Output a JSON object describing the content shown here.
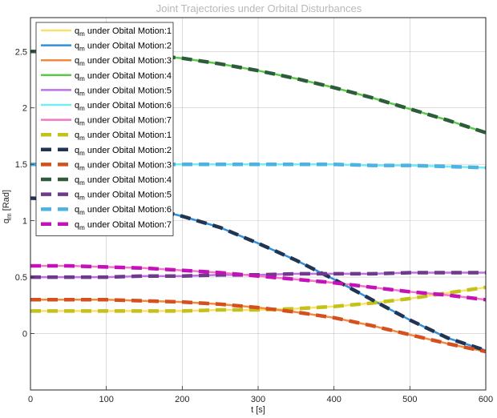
{
  "chart_data": {
    "type": "line",
    "title": "Joint Trajectories under Orbital Disturbances",
    "xlabel": "t [s]",
    "ylabel_main": "q",
    "ylabel_sub": "m",
    "ylabel_tail": " [Rad]",
    "xlim": [
      0,
      600
    ],
    "ylim": [
      -0.5,
      2.8
    ],
    "xticks": [
      0,
      100,
      200,
      300,
      400,
      500,
      600
    ],
    "yticks": [
      0,
      0.5,
      1,
      1.5,
      2,
      2.5
    ],
    "grid": true,
    "legend_position": "top-left",
    "legend_prefix": "q",
    "legend_sub": "m",
    "x": [
      0,
      50,
      100,
      150,
      200,
      250,
      300,
      350,
      400,
      450,
      500,
      550,
      600
    ],
    "series": [
      {
        "name": " under Obital Motion:1",
        "style": "solid",
        "color": "#fbe06c",
        "values": [
          0.2,
          0.2,
          0.2,
          0.2,
          0.2,
          0.21,
          0.21,
          0.22,
          0.24,
          0.27,
          0.31,
          0.36,
          0.41
        ]
      },
      {
        "name": " under Obital Motion:2",
        "style": "solid",
        "color": "#2f8fd8",
        "values": [
          1.2,
          1.19,
          1.17,
          1.12,
          1.04,
          0.94,
          0.8,
          0.65,
          0.48,
          0.3,
          0.12,
          -0.04,
          -0.15
        ]
      },
      {
        "name": " under Obital Motion:3",
        "style": "solid",
        "color": "#f08a40",
        "values": [
          0.3,
          0.3,
          0.3,
          0.29,
          0.28,
          0.26,
          0.23,
          0.19,
          0.14,
          0.07,
          -0.01,
          -0.09,
          -0.16
        ]
      },
      {
        "name": " under Obital Motion:4",
        "style": "solid",
        "color": "#5ac94a",
        "values": [
          2.5,
          2.5,
          2.49,
          2.47,
          2.44,
          2.39,
          2.33,
          2.26,
          2.18,
          2.09,
          1.99,
          1.89,
          1.78
        ]
      },
      {
        "name": " under Obital Motion:5",
        "style": "solid",
        "color": "#c171e8",
        "values": [
          0.5,
          0.5,
          0.5,
          0.51,
          0.51,
          0.52,
          0.52,
          0.53,
          0.53,
          0.53,
          0.54,
          0.54,
          0.54
        ]
      },
      {
        "name": " under Obital Motion:6",
        "style": "solid",
        "color": "#73ecf2",
        "values": [
          1.5,
          1.5,
          1.5,
          1.5,
          1.5,
          1.5,
          1.5,
          1.5,
          1.5,
          1.49,
          1.49,
          1.48,
          1.47
        ]
      },
      {
        "name": " under Obital Motion:7",
        "style": "solid",
        "color": "#f07ac4",
        "values": [
          0.6,
          0.6,
          0.59,
          0.58,
          0.56,
          0.54,
          0.51,
          0.48,
          0.45,
          0.41,
          0.37,
          0.34,
          0.3
        ]
      },
      {
        "name": " under Obital Motion:1",
        "style": "dashed",
        "color": "#c4c11a",
        "values": [
          0.2,
          0.2,
          0.2,
          0.2,
          0.2,
          0.21,
          0.21,
          0.22,
          0.24,
          0.27,
          0.31,
          0.36,
          0.41
        ]
      },
      {
        "name": " under Obital Motion:2",
        "style": "dashed",
        "color": "#213552",
        "values": [
          1.2,
          1.19,
          1.17,
          1.12,
          1.04,
          0.94,
          0.8,
          0.65,
          0.48,
          0.3,
          0.12,
          -0.04,
          -0.15
        ]
      },
      {
        "name": " under Obital Motion:3",
        "style": "dashed",
        "color": "#d4501e",
        "values": [
          0.3,
          0.3,
          0.3,
          0.29,
          0.28,
          0.26,
          0.23,
          0.19,
          0.14,
          0.07,
          -0.01,
          -0.09,
          -0.16
        ]
      },
      {
        "name": " under Obital Motion:4",
        "style": "dashed",
        "color": "#2c5c3a",
        "values": [
          2.5,
          2.5,
          2.49,
          2.47,
          2.44,
          2.39,
          2.33,
          2.26,
          2.18,
          2.09,
          1.99,
          1.89,
          1.78
        ]
      },
      {
        "name": " under Obital Motion:5",
        "style": "dashed",
        "color": "#6e3a8c",
        "values": [
          0.5,
          0.5,
          0.5,
          0.51,
          0.51,
          0.52,
          0.52,
          0.53,
          0.53,
          0.53,
          0.54,
          0.54,
          0.54
        ]
      },
      {
        "name": " under Obital Motion:6",
        "style": "dashed",
        "color": "#4cb3e3",
        "values": [
          1.5,
          1.5,
          1.5,
          1.5,
          1.5,
          1.5,
          1.5,
          1.5,
          1.5,
          1.49,
          1.49,
          1.48,
          1.47
        ]
      },
      {
        "name": " under Obital Motion:7",
        "style": "dashed",
        "color": "#c212b8",
        "values": [
          0.6,
          0.6,
          0.59,
          0.58,
          0.56,
          0.54,
          0.51,
          0.48,
          0.45,
          0.41,
          0.37,
          0.34,
          0.3
        ]
      }
    ]
  }
}
